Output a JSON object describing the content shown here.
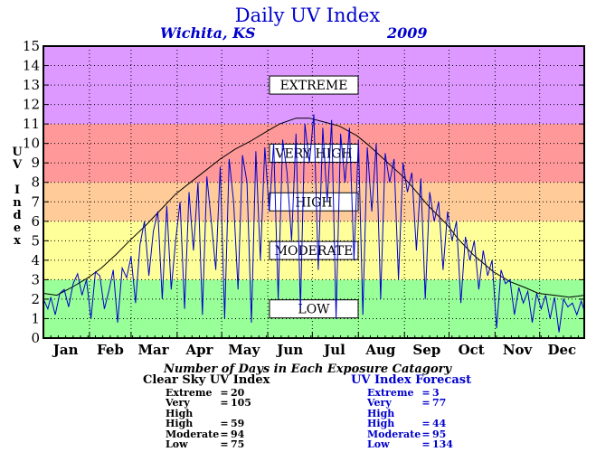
{
  "header": {
    "title": "Daily UV Index",
    "location": "Wichita, KS",
    "year": "2009"
  },
  "chart_data": {
    "type": "line",
    "ylabel": "UV Index",
    "xlabel": "",
    "ylim": [
      0,
      15
    ],
    "xlim": [
      1,
      365
    ],
    "grid": true,
    "y_ticks": [
      "0",
      "1",
      "2",
      "3",
      "4",
      "5",
      "6",
      "7",
      "8",
      "9",
      "10",
      "11",
      "12",
      "13",
      "14",
      "15"
    ],
    "months": [
      "Jan",
      "Feb",
      "Mar",
      "Apr",
      "May",
      "Jun",
      "Jul",
      "Aug",
      "Sep",
      "Oct",
      "Nov",
      "Dec"
    ],
    "bands": [
      {
        "label": "LOW",
        "range": [
          0,
          3
        ],
        "color": "#99ff99"
      },
      {
        "label": "MODERATE",
        "range": [
          3,
          6
        ],
        "color": "#ffff99"
      },
      {
        "label": "HIGH",
        "range": [
          6,
          8
        ],
        "color": "#ffcc99"
      },
      {
        "label": "VERY HIGH",
        "range": [
          8,
          11
        ],
        "color": "#ff9999"
      },
      {
        "label": "EXTREME",
        "range": [
          11,
          15
        ],
        "color": "#dd99ff"
      }
    ],
    "series": [
      {
        "name": "Clear Sky UV Index",
        "color": "#000000",
        "x": [
          1,
          10,
          20,
          31,
          40,
          50,
          59,
          70,
          80,
          90,
          100,
          110,
          120,
          130,
          140,
          151,
          160,
          171,
          180,
          190,
          200,
          212,
          220,
          230,
          243,
          250,
          260,
          273,
          280,
          290,
          304,
          315,
          325,
          334,
          345,
          355,
          365
        ],
        "values": [
          2.3,
          2.2,
          2.6,
          3.1,
          3.6,
          4.3,
          5.0,
          5.8,
          6.6,
          7.4,
          8.0,
          8.6,
          9.2,
          9.7,
          10.1,
          10.6,
          11.0,
          11.3,
          11.3,
          11.1,
          10.9,
          10.4,
          9.9,
          9.2,
          8.3,
          7.7,
          6.8,
          5.8,
          5.1,
          4.3,
          3.4,
          2.9,
          2.6,
          2.3,
          2.2,
          2.1,
          2.2
        ]
      },
      {
        "name": "UV Index Forecast",
        "color": "#0000cc",
        "x": [
          1,
          4,
          6,
          9,
          12,
          15,
          18,
          21,
          24,
          27,
          30,
          33,
          36,
          39,
          42,
          45,
          48,
          51,
          54,
          57,
          60,
          63,
          66,
          69,
          72,
          75,
          78,
          81,
          84,
          87,
          90,
          93,
          96,
          99,
          102,
          105,
          108,
          111,
          114,
          117,
          120,
          123,
          126,
          129,
          132,
          135,
          138,
          141,
          144,
          147,
          150,
          153,
          156,
          159,
          162,
          165,
          168,
          171,
          174,
          177,
          180,
          183,
          186,
          189,
          192,
          195,
          198,
          201,
          204,
          207,
          210,
          213,
          216,
          219,
          222,
          225,
          228,
          231,
          234,
          237,
          240,
          243,
          246,
          249,
          252,
          255,
          258,
          261,
          264,
          267,
          270,
          273,
          276,
          279,
          282,
          285,
          288,
          291,
          294,
          297,
          300,
          303,
          306,
          309,
          312,
          315,
          318,
          321,
          324,
          327,
          330,
          333,
          336,
          339,
          342,
          345,
          348,
          351,
          354,
          357,
          360,
          363,
          365
        ],
        "values": [
          2.0,
          1.5,
          2.1,
          1.2,
          2.3,
          2.5,
          1.6,
          2.8,
          3.3,
          2.2,
          3.0,
          1.0,
          3.4,
          3.2,
          1.5,
          2.4,
          3.5,
          0.8,
          3.6,
          3.1,
          4.2,
          1.8,
          4.8,
          6.0,
          3.2,
          5.5,
          6.5,
          2.0,
          6.8,
          2.5,
          5.0,
          7.0,
          1.5,
          7.5,
          4.5,
          8.0,
          1.2,
          8.3,
          6.0,
          3.5,
          8.8,
          1.0,
          9.2,
          7.0,
          2.5,
          9.4,
          8.0,
          0.8,
          9.6,
          4.0,
          9.8,
          6.5,
          10.0,
          2.0,
          10.2,
          8.5,
          5.0,
          10.5,
          1.5,
          11.0,
          9.0,
          11.5,
          3.5,
          10.8,
          7.0,
          11.2,
          1.0,
          10.5,
          8.0,
          10.8,
          4.0,
          10.2,
          1.2,
          9.8,
          6.5,
          10.0,
          2.0,
          9.5,
          8.0,
          9.2,
          3.0,
          9.0,
          7.5,
          8.5,
          4.5,
          8.2,
          2.0,
          7.5,
          6.0,
          7.0,
          3.5,
          6.5,
          5.0,
          6.0,
          1.8,
          5.2,
          4.0,
          5.0,
          2.5,
          4.5,
          3.2,
          4.0,
          0.5,
          3.5,
          2.8,
          3.0,
          1.2,
          2.6,
          1.8,
          2.4,
          0.8,
          2.3,
          1.5,
          2.2,
          1.0,
          2.1,
          0.3,
          2.0,
          1.6,
          1.8,
          1.2,
          1.9,
          1.4
        ]
      }
    ]
  },
  "summary": {
    "caption": "Number of Days in Each Exposure Catagory",
    "clear_sky": {
      "title": "Clear Sky UV Index",
      "rows": [
        {
          "name": "Extreme",
          "eq": "=",
          "value": "20"
        },
        {
          "name": "Very High",
          "eq": "=",
          "value": "105"
        },
        {
          "name": "High",
          "eq": "=",
          "value": "59"
        },
        {
          "name": "Moderate",
          "eq": "=",
          "value": "94"
        },
        {
          "name": "Low",
          "eq": "=",
          "value": "75"
        }
      ]
    },
    "forecast": {
      "title": "UV Index Forecast",
      "rows": [
        {
          "name": "Extreme",
          "eq": "=",
          "value": "3"
        },
        {
          "name": "Very High",
          "eq": "=",
          "value": "77"
        },
        {
          "name": "High",
          "eq": "=",
          "value": "44"
        },
        {
          "name": "Moderate",
          "eq": "=",
          "value": "95"
        },
        {
          "name": "Low",
          "eq": "=",
          "value": "134"
        }
      ]
    }
  }
}
